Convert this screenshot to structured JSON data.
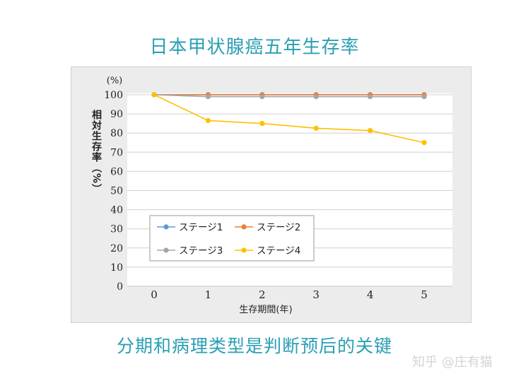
{
  "page": {
    "title": "日本甲状腺癌五年生存率",
    "caption": "分期和病理类型是判断预后的关键",
    "watermark": "知乎 @庄有猫"
  },
  "chart_data": {
    "type": "line",
    "title": "日本甲状腺癌五年生存率",
    "xlabel": "生存期間(年)",
    "ylabel": "相対生存率（%）",
    "y_unit": "(%)",
    "x": [
      0,
      1,
      2,
      3,
      4,
      5
    ],
    "xlim": [
      0,
      5
    ],
    "ylim": [
      0,
      100
    ],
    "yticks": [
      0,
      10,
      20,
      30,
      40,
      50,
      60,
      70,
      80,
      90,
      100
    ],
    "grid": "horizontal",
    "legend_position": "bottom-left",
    "series": [
      {
        "name": "ステージ1",
        "color": "#5b9bd5",
        "values": [
          100,
          100,
          100,
          100,
          100,
          100
        ]
      },
      {
        "name": "ステージ2",
        "color": "#ed7d31",
        "values": [
          100,
          100,
          100,
          100,
          100,
          100
        ]
      },
      {
        "name": "ステージ3",
        "color": "#a5a5a5",
        "values": [
          100,
          99,
          99,
          99,
          99,
          99
        ]
      },
      {
        "name": "ステージ4",
        "color": "#ffc000",
        "values": [
          100,
          86.5,
          85,
          82.5,
          81.3,
          75
        ]
      }
    ]
  }
}
